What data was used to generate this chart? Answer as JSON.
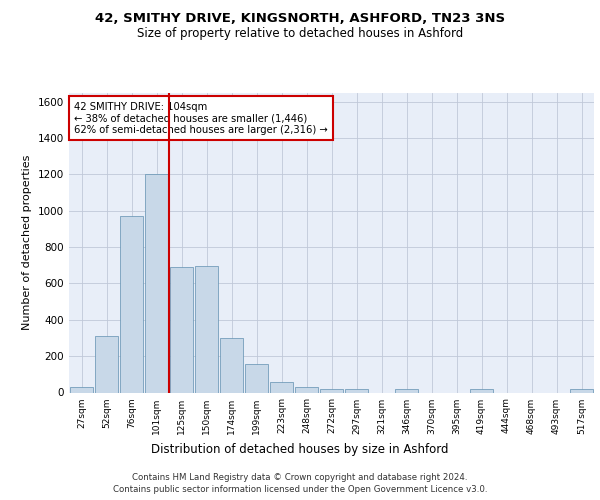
{
  "title1": "42, SMITHY DRIVE, KINGSNORTH, ASHFORD, TN23 3NS",
  "title2": "Size of property relative to detached houses in Ashford",
  "xlabel": "Distribution of detached houses by size in Ashford",
  "ylabel": "Number of detached properties",
  "footer1": "Contains HM Land Registry data © Crown copyright and database right 2024.",
  "footer2": "Contains public sector information licensed under the Open Government Licence v3.0.",
  "annotation_line1": "42 SMITHY DRIVE: 104sqm",
  "annotation_line2": "← 38% of detached houses are smaller (1,446)",
  "annotation_line3": "62% of semi-detached houses are larger (2,316) →",
  "bar_labels": [
    "27sqm",
    "52sqm",
    "76sqm",
    "101sqm",
    "125sqm",
    "150sqm",
    "174sqm",
    "199sqm",
    "223sqm",
    "248sqm",
    "272sqm",
    "297sqm",
    "321sqm",
    "346sqm",
    "370sqm",
    "395sqm",
    "419sqm",
    "444sqm",
    "468sqm",
    "493sqm",
    "517sqm"
  ],
  "bar_values": [
    30,
    310,
    970,
    1200,
    690,
    695,
    300,
    155,
    60,
    30,
    20,
    20,
    0,
    20,
    0,
    0,
    20,
    0,
    0,
    0,
    20
  ],
  "bar_color": "#c8d8e8",
  "bar_edge_color": "#6090b0",
  "vline_x": 3.5,
  "vline_color": "#cc0000",
  "annotation_box_color": "#cc0000",
  "ylim": [
    0,
    1650
  ],
  "yticks": [
    0,
    200,
    400,
    600,
    800,
    1000,
    1200,
    1400,
    1600
  ],
  "grid_color": "#c0c8d8",
  "plot_bg_color": "#e8eef8"
}
